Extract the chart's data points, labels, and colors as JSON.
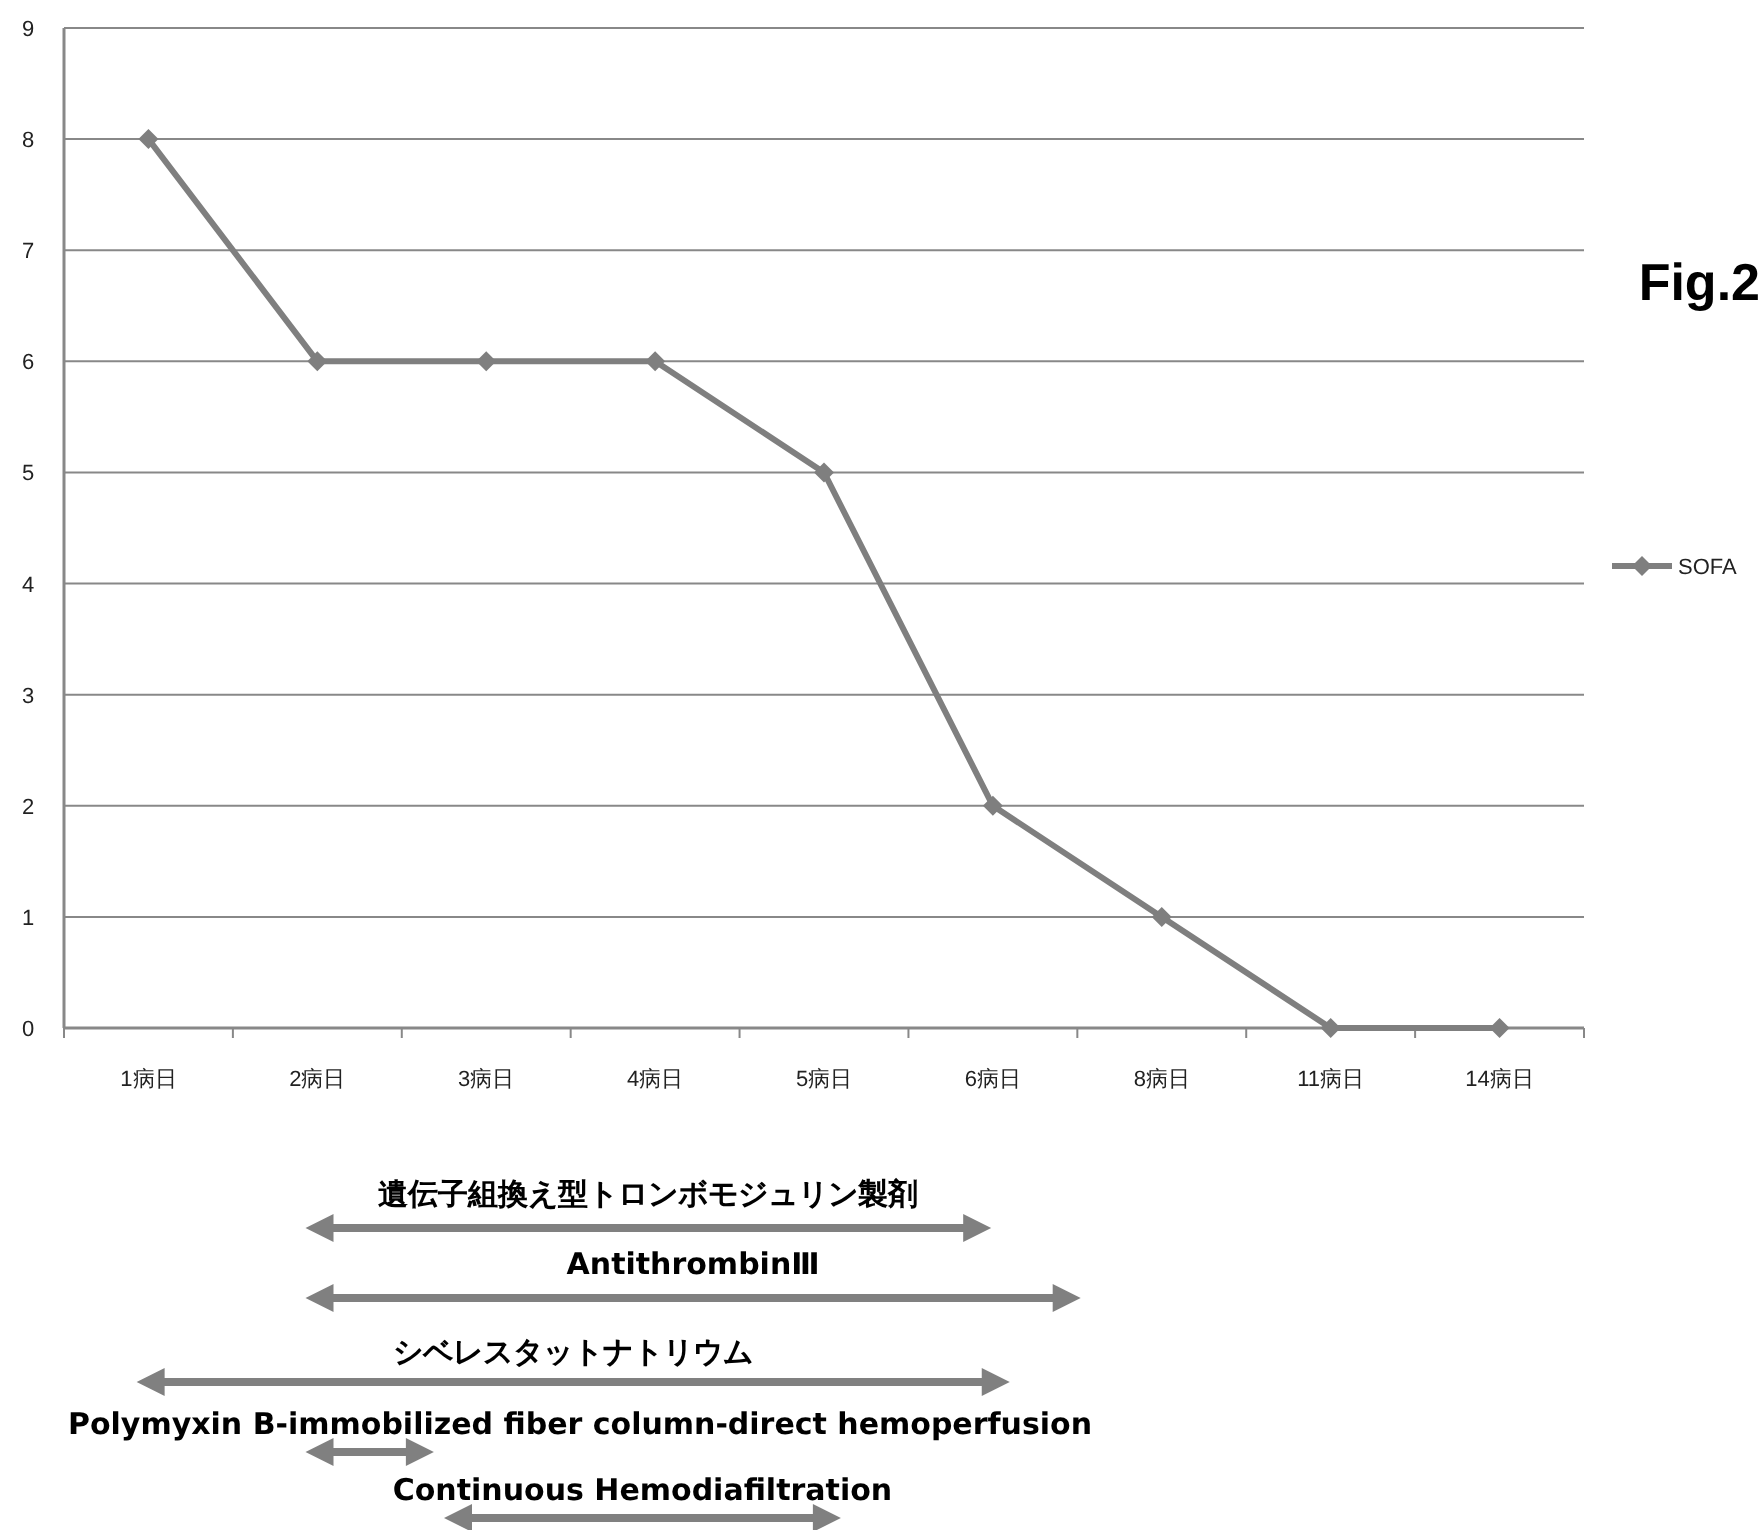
{
  "chart_data": {
    "type": "line",
    "title": "Fig.2",
    "categories": [
      "1病日",
      "2病日",
      "3病日",
      "4病日",
      "5病日",
      "6病日",
      "8病日",
      "11病日",
      "14病日"
    ],
    "series": [
      {
        "name": "SOFA",
        "color": "#7f7f7f",
        "values": [
          8,
          6,
          6,
          6,
          5,
          2,
          1,
          0,
          0
        ]
      }
    ],
    "ylim": [
      0,
      9
    ],
    "yticks": [
      0,
      1,
      2,
      3,
      4,
      5,
      6,
      7,
      8,
      9
    ],
    "grid": "y",
    "legend": "right",
    "marker": "diamond",
    "line_style": "solid",
    "annotations": [
      "遺伝子組換え型トロンボモジュリン製剤",
      "AntithrombinⅢ",
      "シベレスタットナトリウム",
      "Polymyxin B-immobilized fiber column-direct hemoperfusion",
      "Continuous Hemodiafiltration"
    ]
  }
}
